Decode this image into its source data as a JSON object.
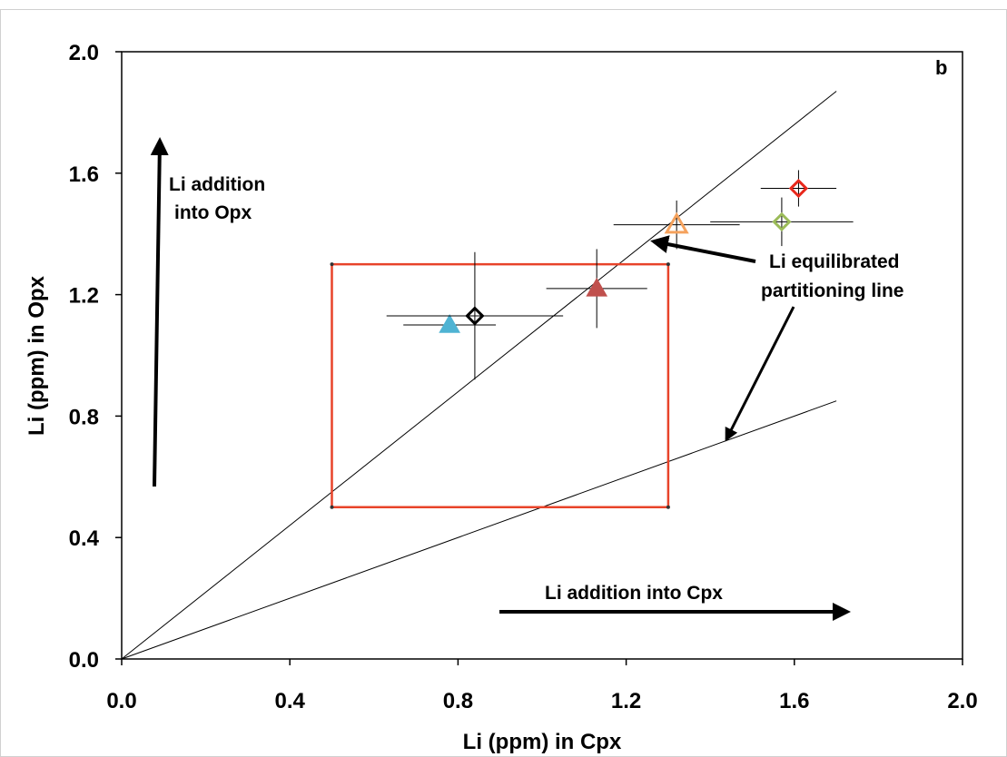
{
  "chart_data": {
    "type": "scatter",
    "title": "",
    "panel_label": "b",
    "xlabel": "Li (ppm) in Cpx",
    "ylabel": "Li (ppm) in Opx",
    "xlim": [
      0,
      2
    ],
    "ylim": [
      0,
      2
    ],
    "x_ticks": [
      "0.0",
      "0.4",
      "0.8",
      "1.2",
      "1.6",
      "2.0"
    ],
    "y_ticks": [
      "0.0",
      "0.4",
      "0.8",
      "1.2",
      "1.6",
      "2.0"
    ],
    "grid": false,
    "legend": "none",
    "points": [
      {
        "x": 0.78,
        "y": 1.1,
        "xerr": 0.11,
        "yerr": 0.0,
        "marker": "triangle-filled",
        "color": "#4fb3d3"
      },
      {
        "x": 0.84,
        "y": 1.13,
        "xerr": 0.21,
        "yerr": 0.21,
        "marker": "diamond-open",
        "color": "#000000"
      },
      {
        "x": 1.13,
        "y": 1.22,
        "xerr": 0.12,
        "yerr": 0.13,
        "marker": "triangle-filled",
        "color": "#c0504d"
      },
      {
        "x": 1.32,
        "y": 1.43,
        "xerr": 0.15,
        "yerr": 0.08,
        "marker": "triangle-open",
        "color": "#f5a25d"
      },
      {
        "x": 1.57,
        "y": 1.44,
        "xerr": 0.17,
        "yerr": 0.08,
        "marker": "diamond-open",
        "color": "#9bbb59"
      },
      {
        "x": 1.61,
        "y": 1.55,
        "xerr": 0.09,
        "yerr": 0.06,
        "marker": "diamond-open",
        "color": "#e8281c"
      }
    ],
    "lines": [
      {
        "x": [
          0,
          1.7
        ],
        "y": [
          0,
          1.87
        ],
        "color": "#000000"
      },
      {
        "x": [
          0,
          1.7
        ],
        "y": [
          0,
          0.85
        ],
        "color": "#000000"
      }
    ],
    "box": {
      "x0": 0.5,
      "x1": 1.3,
      "y0": 0.5,
      "y1": 1.3,
      "color": "#e8442a"
    },
    "annotations": {
      "opx": [
        "Li addition",
        "into Opx"
      ],
      "cpx": "Li addition into Cpx",
      "equil": [
        "Li equilibrated",
        "partitioning line"
      ]
    }
  }
}
